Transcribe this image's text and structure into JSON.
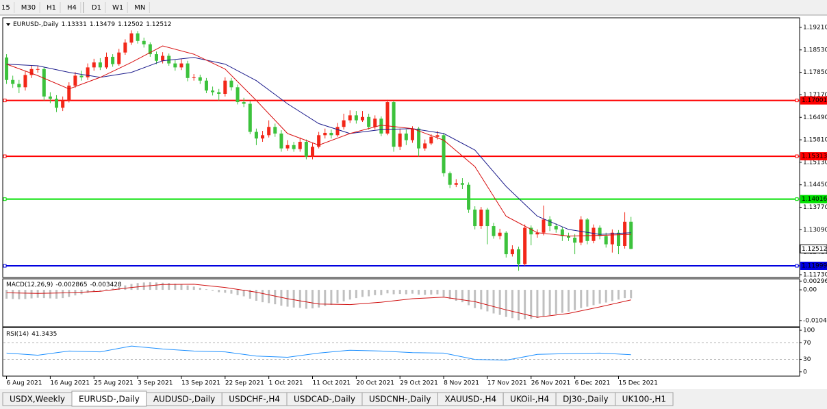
{
  "toolbar": {
    "timeframes": [
      "15",
      "M30",
      "H1",
      "H4",
      "D1",
      "W1",
      "MN"
    ]
  },
  "chart_data": [
    {
      "type": "candlestick",
      "title": "EURUSD-,Daily",
      "open": [
        1.183,
        1.1762,
        1.175,
        1.174,
        1.1777,
        1.1795,
        1.1795,
        1.1712,
        1.1705,
        1.1678,
        1.17,
        1.1745,
        1.1775,
        1.177,
        1.18,
        1.1815,
        1.18,
        1.1832,
        1.181,
        1.1845,
        1.1875,
        1.1903,
        1.188,
        1.187,
        1.184,
        1.182,
        1.1835,
        1.1812,
        1.18,
        1.1812,
        1.1768,
        1.177,
        1.176,
        1.173,
        1.1725,
        1.172,
        1.176,
        1.174,
        1.1695,
        1.169,
        1.1605,
        1.1585,
        1.1595,
        1.162,
        1.16,
        1.1555,
        1.1565,
        1.1553,
        1.1575,
        1.153,
        1.156,
        1.1595,
        1.1602,
        1.1595,
        1.162,
        1.164,
        1.1655,
        1.164,
        1.165,
        1.162,
        1.1645,
        1.16,
        1.1695,
        1.156,
        1.16,
        1.158,
        1.1615,
        1.1555,
        1.157,
        1.159,
        1.1595,
        1.148,
        1.1445,
        1.145,
        1.1445,
        1.137,
        1.132,
        1.137,
        1.132,
        1.129,
        1.13,
        1.1235,
        1.125,
        1.1205,
        1.1315,
        1.1295,
        1.13,
        1.134,
        1.132,
        1.131,
        1.129,
        1.1285,
        1.127,
        1.134,
        1.1275,
        1.1315,
        1.129,
        1.1265,
        1.13,
        1.126,
        1.13331
      ],
      "high": [
        1.184,
        1.1775,
        1.1762,
        1.179,
        1.1805,
        1.1806,
        1.1802,
        1.1725,
        1.1716,
        1.1712,
        1.1755,
        1.1786,
        1.179,
        1.1812,
        1.1826,
        1.1828,
        1.1845,
        1.184,
        1.1856,
        1.1885,
        1.1912,
        1.191,
        1.189,
        1.1876,
        1.1848,
        1.1846,
        1.1842,
        1.1822,
        1.1825,
        1.182,
        1.178,
        1.1778,
        1.1768,
        1.1742,
        1.1735,
        1.177,
        1.1768,
        1.1748,
        1.1708,
        1.1698,
        1.1615,
        1.1608,
        1.164,
        1.163,
        1.161,
        1.158,
        1.1575,
        1.1588,
        1.1582,
        1.1572,
        1.1605,
        1.1615,
        1.1612,
        1.1632,
        1.166,
        1.167,
        1.1668,
        1.1668,
        1.166,
        1.1655,
        1.1652,
        1.1702,
        1.17,
        1.1615,
        1.1612,
        1.1622,
        1.162,
        1.1582,
        1.1598,
        1.1608,
        1.1602,
        1.1485,
        1.1462,
        1.1465,
        1.1452,
        1.138,
        1.1378,
        1.1375,
        1.133,
        1.1312,
        1.1305,
        1.1262,
        1.1258,
        1.1325,
        1.1322,
        1.131,
        1.1382,
        1.135,
        1.1328,
        1.1318,
        1.13,
        1.1296,
        1.135,
        1.1345,
        1.1325,
        1.1322,
        1.13,
        1.131,
        1.1308,
        1.1362,
        1.13479
      ],
      "low": [
        1.175,
        1.1738,
        1.1722,
        1.173,
        1.1768,
        1.1784,
        1.17,
        1.1692,
        1.1665,
        1.1668,
        1.1694,
        1.1738,
        1.176,
        1.1762,
        1.179,
        1.1792,
        1.1795,
        1.1802,
        1.1805,
        1.1838,
        1.1868,
        1.1872,
        1.186,
        1.1832,
        1.181,
        1.1812,
        1.1805,
        1.179,
        1.1792,
        1.1758,
        1.176,
        1.175,
        1.1722,
        1.1715,
        1.17,
        1.1712,
        1.173,
        1.1688,
        1.168,
        1.1598,
        1.1565,
        1.1575,
        1.1588,
        1.159,
        1.1545,
        1.1548,
        1.1545,
        1.1545,
        1.1522,
        1.1522,
        1.1555,
        1.1585,
        1.1585,
        1.159,
        1.1612,
        1.1632,
        1.163,
        1.1635,
        1.1612,
        1.1612,
        1.1592,
        1.1595,
        1.1545,
        1.155,
        1.1565,
        1.1572,
        1.153,
        1.1548,
        1.1565,
        1.1582,
        1.147,
        1.1435,
        1.1438,
        1.1432,
        1.136,
        1.131,
        1.1312,
        1.1265,
        1.1282,
        1.128,
        1.1225,
        1.1228,
        1.1185,
        1.12,
        1.1262,
        1.1285,
        1.1292,
        1.1305,
        1.13,
        1.1275,
        1.1275,
        1.1235,
        1.1262,
        1.1265,
        1.1268,
        1.128,
        1.1255,
        1.124,
        1.1235,
        1.1252,
        1.12502
      ],
      "close": [
        1.1762,
        1.175,
        1.174,
        1.1777,
        1.1795,
        1.1795,
        1.1712,
        1.1705,
        1.1678,
        1.17,
        1.1745,
        1.1775,
        1.177,
        1.18,
        1.1815,
        1.18,
        1.1832,
        1.181,
        1.1845,
        1.1875,
        1.1903,
        1.188,
        1.187,
        1.184,
        1.182,
        1.1835,
        1.1812,
        1.18,
        1.1812,
        1.1768,
        1.177,
        1.176,
        1.173,
        1.1725,
        1.172,
        1.176,
        1.174,
        1.1695,
        1.169,
        1.1605,
        1.1585,
        1.1595,
        1.162,
        1.16,
        1.1555,
        1.1565,
        1.1553,
        1.1575,
        1.153,
        1.156,
        1.1595,
        1.1602,
        1.1595,
        1.162,
        1.164,
        1.1655,
        1.164,
        1.165,
        1.162,
        1.1645,
        1.16,
        1.1695,
        1.156,
        1.16,
        1.158,
        1.1615,
        1.1555,
        1.157,
        1.159,
        1.1595,
        1.148,
        1.1445,
        1.145,
        1.1445,
        1.137,
        1.132,
        1.137,
        1.132,
        1.129,
        1.13,
        1.1235,
        1.125,
        1.1205,
        1.1315,
        1.1295,
        1.13,
        1.134,
        1.132,
        1.131,
        1.129,
        1.1285,
        1.127,
        1.134,
        1.1275,
        1.1315,
        1.129,
        1.1265,
        1.13,
        1.126,
        1.1333,
        1.12512
      ],
      "up_color": "#f22718",
      "down_color": "#3cc23c",
      "xlim": [
        -0.5,
        127
      ],
      "xticks": [
        {
          "value": 0,
          "label": "6 Aug 2021"
        },
        {
          "value": 7,
          "label": "16 Aug 2021"
        },
        {
          "value": 14,
          "label": "25 Aug 2021"
        },
        {
          "value": 21,
          "label": "3 Sep 2021"
        },
        {
          "value": 28,
          "label": "13 Sep 2021"
        },
        {
          "value": 35,
          "label": "22 Sep 2021"
        },
        {
          "value": 42,
          "label": "1 Oct 2021"
        },
        {
          "value": 49,
          "label": "11 Oct 2021"
        },
        {
          "value": 56,
          "label": "20 Oct 2021"
        },
        {
          "value": 63,
          "label": "29 Oct 2021"
        },
        {
          "value": 70,
          "label": "8 Nov 2021"
        },
        {
          "value": 77,
          "label": "17 Nov 2021"
        },
        {
          "value": 84,
          "label": "26 Nov 2021"
        },
        {
          "value": 91,
          "label": "6 Dec 2021"
        },
        {
          "value": 98,
          "label": "15 Dec 2021"
        }
      ],
      "ylim": [
        1.11647,
        1.19479
      ],
      "yticks": [
        {
          "value": 1.1921,
          "label": "1.19210"
        },
        {
          "value": 1.1853,
          "label": "1.18530"
        },
        {
          "value": 1.1785,
          "label": "1.17850"
        },
        {
          "value": 1.1717,
          "label": "1.17170"
        },
        {
          "value": 1.1649,
          "label": "1.16490"
        },
        {
          "value": 1.1581,
          "label": "1.15810"
        },
        {
          "value": 1.1513,
          "label": "1.15130"
        },
        {
          "value": 1.1445,
          "label": "1.14450"
        },
        {
          "value": 1.1377,
          "label": "1.13770"
        },
        {
          "value": 1.1309,
          "label": "1.13090"
        },
        {
          "value": 1.1241,
          "label": "1.12410"
        },
        {
          "value": 1.1173,
          "label": "1.11730"
        }
      ],
      "moving_averages": [
        {
          "color": "#1c1c8c",
          "x": [
            0,
            5,
            10,
            15,
            20,
            25,
            30,
            35,
            40,
            45,
            50,
            55,
            60,
            65,
            70,
            75,
            80,
            85,
            90,
            95,
            100
          ],
          "values": [
            1.181,
            1.1805,
            1.1785,
            1.177,
            1.1785,
            1.182,
            1.183,
            1.181,
            1.176,
            1.169,
            1.163,
            1.16,
            1.1612,
            1.1615,
            1.16,
            1.155,
            1.144,
            1.135,
            1.131,
            1.1295,
            1.13
          ]
        },
        {
          "color": "#d81010",
          "x": [
            0,
            5,
            10,
            15,
            20,
            25,
            30,
            35,
            40,
            45,
            50,
            55,
            60,
            65,
            70,
            75,
            80,
            85,
            90,
            95,
            100
          ],
          "values": [
            1.181,
            1.1775,
            1.1735,
            1.177,
            1.1815,
            1.1865,
            1.184,
            1.1795,
            1.17,
            1.16,
            1.1565,
            1.16,
            1.1625,
            1.1615,
            1.158,
            1.15,
            1.135,
            1.13,
            1.129,
            1.1292,
            1.1295
          ]
        }
      ],
      "levels": [
        {
          "value": 1.17001,
          "color": "#ff0000"
        },
        {
          "value": 1.15313,
          "color": "#ff0000"
        },
        {
          "value": 1.14016,
          "color": "#00e000"
        },
        {
          "value": 1.11999,
          "color": "#0000e0"
        }
      ]
    },
    {
      "type": "macd",
      "title": "MACD(12,26,9)",
      "histogram_color": "#c0c0c0",
      "histogram": [
        -0.003,
        -0.0031,
        -0.0032,
        -0.0031,
        -0.0029,
        -0.0027,
        -0.0028,
        -0.0029,
        -0.003,
        -0.0028,
        -0.0024,
        -0.0019,
        -0.0015,
        -0.001,
        -0.0006,
        -0.0003,
        0.0002,
        0.0005,
        0.001,
        0.0015,
        0.002,
        0.0023,
        0.0025,
        0.0026,
        0.0025,
        0.0024,
        0.0023,
        0.0021,
        0.0019,
        0.0015,
        0.0011,
        0.0007,
        0.0002,
        -0.0003,
        -0.0008,
        -0.001,
        -0.0013,
        -0.0018,
        -0.0022,
        -0.003,
        -0.0037,
        -0.0042,
        -0.0045,
        -0.0049,
        -0.0054,
        -0.0057,
        -0.006,
        -0.0061,
        -0.0064,
        -0.0063,
        -0.006,
        -0.0055,
        -0.0051,
        -0.0045,
        -0.0039,
        -0.0033,
        -0.0028,
        -0.0024,
        -0.0022,
        -0.0018,
        -0.0018,
        -0.0012,
        -0.0015,
        -0.0014,
        -0.0015,
        -0.0013,
        -0.0016,
        -0.0017,
        -0.0016,
        -0.0015,
        -0.0023,
        -0.0031,
        -0.0037,
        -0.0042,
        -0.0052,
        -0.0062,
        -0.0066,
        -0.0073,
        -0.008,
        -0.0085,
        -0.0092,
        -0.0096,
        -0.0103,
        -0.01,
        -0.0098,
        -0.0095,
        -0.0089,
        -0.0086,
        -0.0082,
        -0.0078,
        -0.0074,
        -0.0069,
        -0.0062,
        -0.0057,
        -0.0052,
        -0.0047,
        -0.0043,
        -0.0038,
        -0.0033,
        -0.0028,
        -0.002865
      ],
      "signal": {
        "color": "#d01010",
        "x": [
          0,
          5,
          10,
          15,
          20,
          25,
          30,
          35,
          40,
          45,
          50,
          55,
          60,
          65,
          70,
          75,
          80,
          85,
          90,
          95,
          100
        ],
        "values": [
          -0.001,
          -0.0012,
          -0.001,
          -0.0005,
          0.0008,
          0.0018,
          0.0019,
          0.0008,
          -0.0008,
          -0.003,
          -0.0048,
          -0.005,
          -0.0042,
          -0.003,
          -0.0025,
          -0.004,
          -0.0068,
          -0.0093,
          -0.008,
          -0.0058,
          -0.003428
        ]
      },
      "ylim": [
        -0.0123,
        0.0035
      ],
      "yticks": [
        0.002966,
        {
          "value": 0,
          "label": "0.00"
        },
        -0.01042
      ]
    },
    {
      "type": "rsi",
      "title": "RSI(14)",
      "color": "#1e90ff",
      "x": [
        0,
        5,
        10,
        15,
        20,
        25,
        30,
        35,
        40,
        45,
        50,
        55,
        60,
        65,
        70,
        75,
        80,
        85,
        90,
        95,
        100
      ],
      "values": [
        45,
        40,
        50,
        48,
        62,
        55,
        50,
        48,
        38,
        35,
        45,
        52,
        50,
        46,
        45,
        30,
        28,
        42,
        44,
        45,
        41.3435
      ],
      "levels": [
        70,
        30
      ],
      "ylim": [
        -8.6,
        105
      ],
      "yticks": [
        100,
        70,
        30,
        0
      ]
    }
  ],
  "tabs": [
    "USDX,Weekly",
    "EURUSD-,Daily",
    "AUDUSD-,Daily",
    "USDCHF-,H4",
    "USDCAD-,Daily",
    "USDCNH-,Daily",
    "XAUUSD-,H4",
    "UKOil-,H4",
    "DJ30-,Daily",
    "UK100-,H1"
  ],
  "active_tab": 1
}
